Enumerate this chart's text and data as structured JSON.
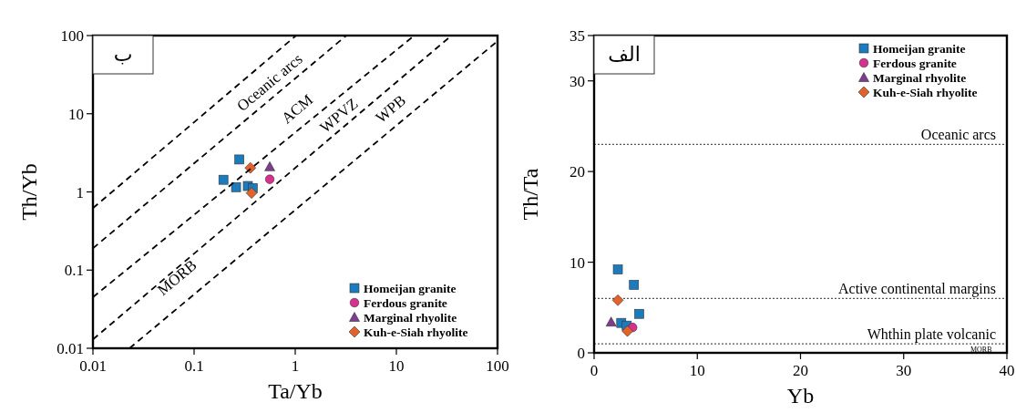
{
  "chart_data": [
    {
      "type": "scatter",
      "title": "ب",
      "xlabel": "Ta/Yb",
      "ylabel": "Th/Yb",
      "log": "xy",
      "xlim": [
        0.01,
        100
      ],
      "ylim": [
        0.01,
        100
      ],
      "xticks": [
        0.01,
        0.1,
        1,
        10,
        100
      ],
      "yticks": [
        0.01,
        0.1,
        1,
        10,
        100
      ],
      "legend": "bottom right",
      "series": [
        {
          "name": "Homeijan granite",
          "color": "#1b7bbd",
          "marker": "square",
          "x": [
            0.28,
            0.195,
            0.26,
            0.34,
            0.38
          ],
          "values": [
            2.6,
            1.43,
            1.15,
            1.19,
            1.12
          ]
        },
        {
          "name": "Ferdous granite",
          "color": "#d8308c",
          "marker": "circle",
          "x": [
            0.56
          ],
          "values": [
            1.45
          ]
        },
        {
          "name": "Marginal rhyolite",
          "color": "#7d3c8e",
          "marker": "triangle",
          "x": [
            0.56
          ],
          "values": [
            2.1
          ]
        },
        {
          "name": "Kuh-e-Siah rhyolite",
          "color": "#e4622a",
          "marker": "diamond",
          "x": [
            0.36,
            0.37
          ],
          "values": [
            2.03,
            0.97
          ]
        },
        {
          "type": "line",
          "color": "#000000",
          "marker": "none",
          "line_style": "dashed",
          "x": [
            0.01,
            1.02
          ],
          "values": [
            0.62,
            100
          ]
        },
        {
          "type": "line",
          "color": "#000000",
          "marker": "none",
          "line_style": "dashed",
          "x": [
            0.01,
            3.2
          ],
          "values": [
            0.19,
            100
          ]
        },
        {
          "type": "line",
          "color": "#000000",
          "marker": "none",
          "line_style": "dashed",
          "x": [
            0.01,
            15
          ],
          "values": [
            0.045,
            100
          ]
        },
        {
          "type": "line",
          "color": "#000000",
          "marker": "none",
          "line_style": "dashed",
          "x": [
            0.01,
            35
          ],
          "values": [
            0.013,
            100
          ]
        },
        {
          "type": "line",
          "color": "#000000",
          "marker": "none",
          "line_style": "dashed",
          "x": [
            0.023,
            100
          ],
          "values": [
            0.01,
            85
          ]
        }
      ],
      "annotations": [
        "Oceanic arcs",
        "ACM",
        "WPVZ",
        "WPB",
        "MORB"
      ]
    },
    {
      "type": "scatter",
      "title": "الف",
      "xlabel": "Yb",
      "ylabel": "Th/Ta",
      "xlim": [
        0,
        40
      ],
      "ylim": [
        0,
        35
      ],
      "xticks": [
        0,
        10,
        20,
        30,
        40
      ],
      "yticks": [
        0,
        10,
        20,
        30,
        35
      ],
      "legend": "top right",
      "series": [
        {
          "name": "Homeijan granite",
          "color": "#1b7bbd",
          "marker": "square",
          "x": [
            2.3,
            3.86,
            4.37,
            2.63,
            3.16
          ],
          "values": [
            9.2,
            7.5,
            4.3,
            3.3,
            3.0
          ]
        },
        {
          "name": "Ferdous granite",
          "color": "#d8308c",
          "marker": "circle",
          "x": [
            3.73
          ],
          "values": [
            2.8
          ]
        },
        {
          "name": "Marginal rhyolite",
          "color": "#7d3c8e",
          "marker": "triangle",
          "x": [
            1.65
          ],
          "values": [
            3.4
          ]
        },
        {
          "name": "Kuh-e-Siah rhyolite",
          "color": "#e4622a",
          "marker": "diamond",
          "x": [
            2.3,
            3.23
          ],
          "values": [
            5.8,
            2.4
          ]
        }
      ],
      "ref_lines": [
        {
          "axis": "y",
          "value": 23,
          "label": "Oceanic arcs",
          "color": "#555555",
          "line_style": "dotted"
        },
        {
          "axis": "y",
          "value": 6,
          "label": "Active continental margins",
          "color": "#555555",
          "line_style": "dotted"
        },
        {
          "axis": "y",
          "value": 1,
          "label": "Whthin plate volcanic",
          "color": "#555555",
          "line_style": "dotted"
        }
      ],
      "annotations": [
        "MORB"
      ]
    }
  ]
}
